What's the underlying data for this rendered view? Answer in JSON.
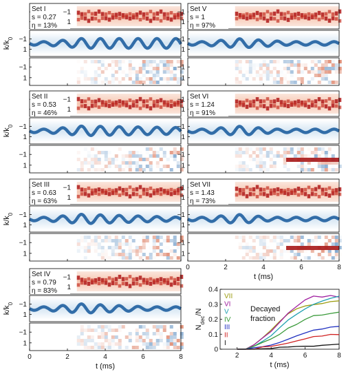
{
  "figure": {
    "y_axis_label": "k/k",
    "y_axis_label_sub": "0",
    "row_ticks": [
      "−1",
      "1"
    ],
    "x_ticks": [
      "0",
      "2",
      "4",
      "6",
      "8"
    ],
    "x_axis_label": "t (ms)"
  },
  "sets": [
    {
      "id": "I",
      "name": "Set I",
      "s": "s = 0.27",
      "eta": "η = 13%"
    },
    {
      "id": "II",
      "name": "Set II",
      "s": "s = 0.53",
      "eta": "η = 46%"
    },
    {
      "id": "III",
      "name": "Set III",
      "s": "s = 0.63",
      "eta": "η = 63%"
    },
    {
      "id": "IV",
      "name": "Set IV",
      "s": "s = 0.79",
      "eta": "η = 83%"
    },
    {
      "id": "V",
      "name": "Set V",
      "s": "s = 1",
      "eta": "η = 97%"
    },
    {
      "id": "VI",
      "name": "Set VI",
      "s": "s = 1.24",
      "eta": "η = 91%"
    },
    {
      "id": "VII",
      "name": "Set VII",
      "s": "s = 1.43",
      "eta": "η = 73%"
    }
  ],
  "inset": {
    "annotation_line1": "Decayed",
    "annotation_line2": "fraction",
    "ylabel": "N",
    "ylabel_sub": "dec",
    "ylabel_tail": "/N",
    "yticks": [
      "0",
      "0.1",
      "0.2",
      "0.3",
      "0.4"
    ],
    "xticks": [
      "2",
      "4",
      "6",
      "8"
    ],
    "xlabel": "t (ms)"
  },
  "chart_data": {
    "type": "line",
    "title": "",
    "xlabel": "t (ms)",
    "ylabel": "N_dec/N",
    "xlim": [
      1,
      8
    ],
    "ylim": [
      0,
      0.4
    ],
    "x": [
      2.5,
      3,
      3.5,
      4,
      4.5,
      5,
      5.5,
      6,
      6.5,
      7,
      7.5,
      8
    ],
    "series": [
      {
        "name": "VII",
        "color": "#9c9c10",
        "values": [
          0.0,
          0.03,
          0.08,
          0.13,
          0.19,
          0.24,
          0.27,
          0.29,
          0.3,
          0.31,
          0.32,
          0.32
        ]
      },
      {
        "name": "VI",
        "color": "#a020a0",
        "values": [
          0.0,
          0.03,
          0.07,
          0.12,
          0.18,
          0.24,
          0.29,
          0.33,
          0.35,
          0.35,
          0.36,
          0.35
        ]
      },
      {
        "name": "V",
        "color": "#20a0b0",
        "values": [
          0.0,
          0.02,
          0.05,
          0.09,
          0.14,
          0.19,
          0.23,
          0.27,
          0.3,
          0.32,
          0.34,
          0.35
        ]
      },
      {
        "name": "IV",
        "color": "#3a9a3a",
        "values": [
          0.0,
          0.02,
          0.04,
          0.07,
          0.1,
          0.14,
          0.17,
          0.2,
          0.22,
          0.23,
          0.24,
          0.25
        ]
      },
      {
        "name": "III",
        "color": "#2030c0",
        "values": [
          0.0,
          0.01,
          0.02,
          0.03,
          0.05,
          0.07,
          0.09,
          0.11,
          0.13,
          0.14,
          0.15,
          0.15
        ]
      },
      {
        "name": "II",
        "color": "#d02020",
        "values": [
          0.0,
          0.0,
          0.01,
          0.02,
          0.03,
          0.04,
          0.06,
          0.07,
          0.08,
          0.09,
          0.1,
          0.1
        ]
      },
      {
        "name": "I",
        "color": "#111111",
        "values": [
          0.0,
          0.0,
          0.0,
          0.005,
          0.01,
          0.01,
          0.015,
          0.02,
          0.02,
          0.025,
          0.03,
          0.03
        ]
      }
    ],
    "legend_placement": "top-left"
  }
}
